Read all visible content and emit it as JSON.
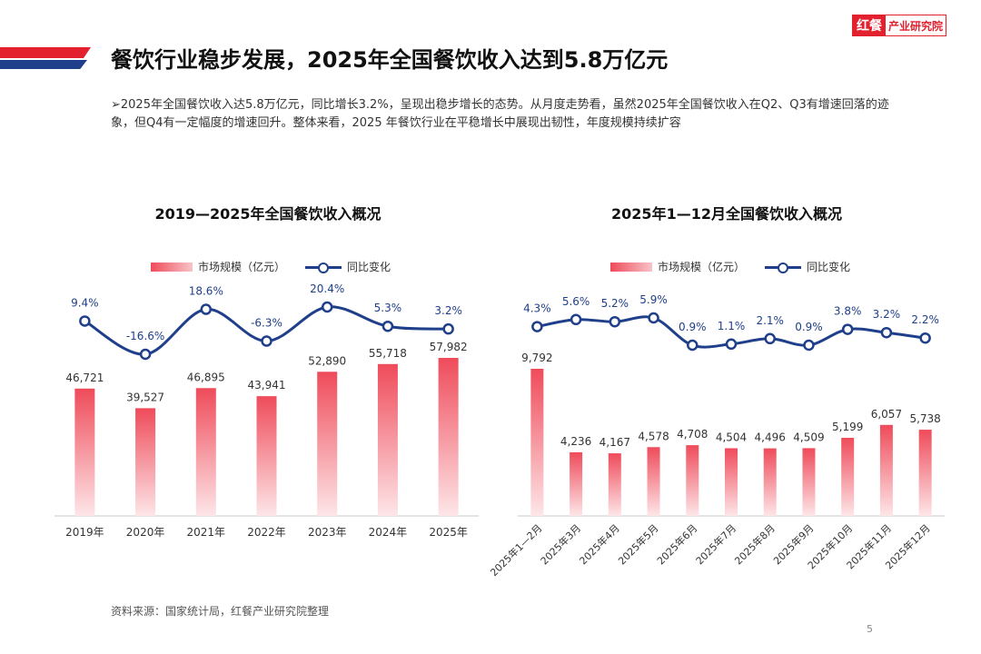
{
  "header": {
    "title": "餐饮行业稳步发展，2025年全国餐饮收入达到5.8万亿元",
    "logo_mark": "红餐",
    "logo_text": "产业研究院"
  },
  "intro": "➢2025年全国餐饮收入达5.8万亿元，同比增长3.2%，呈现出稳步增长的态势。从月度走势看，虽然2025年全国餐饮收入在Q2、Q3有增速回落的迹象，但Q4有一定幅度的增速回升。整体来看，2025 年餐饮行业在平稳增长中展现出韧性，年度规模持续扩容",
  "legend": {
    "bar": "市场规模（亿元）",
    "line": "同比变化"
  },
  "source": "资料来源：国家统计局，红餐产业研究院整理",
  "page_number": "5",
  "colors": {
    "accent_red": "#e3202e",
    "navy": "#1f3f8a",
    "bar_top": "#ef4b5a",
    "bar_bottom": "#fde6e8"
  },
  "chart_data": [
    {
      "type": "bar",
      "title": "2019—2025年全国餐饮收入概况",
      "categories": [
        "2019年",
        "2020年",
        "2021年",
        "2022年",
        "2023年",
        "2024年",
        "2025年"
      ],
      "series": [
        {
          "name": "市场规模（亿元）",
          "type": "bar",
          "values": [
            46721,
            39527,
            46895,
            43941,
            52890,
            55718,
            57982
          ],
          "labels": [
            "46,721",
            "39,527",
            "46,895",
            "43,941",
            "52,890",
            "55,718",
            "57,982"
          ]
        },
        {
          "name": "同比变化",
          "type": "line",
          "values": [
            9.4,
            -16.6,
            18.6,
            -6.3,
            20.4,
            5.3,
            3.2
          ],
          "labels": [
            "9.4%",
            "-16.6%",
            "18.6%",
            "-6.3%",
            "20.4%",
            "5.3%",
            "3.2%"
          ]
        }
      ],
      "xlabel": "",
      "ylabel": ""
    },
    {
      "type": "bar",
      "title": "2025年1—12月全国餐饮收入概况",
      "categories": [
        "2025年1—2月",
        "2025年3月",
        "2025年4月",
        "2025年5月",
        "2025年6月",
        "2025年7月",
        "2025年8月",
        "2025年9月",
        "2025年10月",
        "2025年11月",
        "2025年12月"
      ],
      "series": [
        {
          "name": "市场规模（亿元）",
          "type": "bar",
          "values": [
            9792,
            4236,
            4167,
            4578,
            4708,
            4504,
            4496,
            4509,
            5199,
            6057,
            5738
          ],
          "labels": [
            "9,792",
            "4,236",
            "4,167",
            "4,578",
            "4,708",
            "4,504",
            "4,496",
            "4,509",
            "5,199",
            "6,057",
            "5,738"
          ]
        },
        {
          "name": "同比变化",
          "type": "line",
          "values": [
            4.3,
            5.6,
            5.2,
            5.9,
            0.9,
            1.1,
            2.1,
            0.9,
            3.8,
            3.2,
            2.2
          ],
          "labels": [
            "4.3%",
            "5.6%",
            "5.2%",
            "5.9%",
            "0.9%",
            "1.1%",
            "2.1%",
            "0.9%",
            "3.8%",
            "3.2%",
            "2.2%"
          ]
        }
      ],
      "xlabel": "",
      "ylabel": ""
    }
  ]
}
